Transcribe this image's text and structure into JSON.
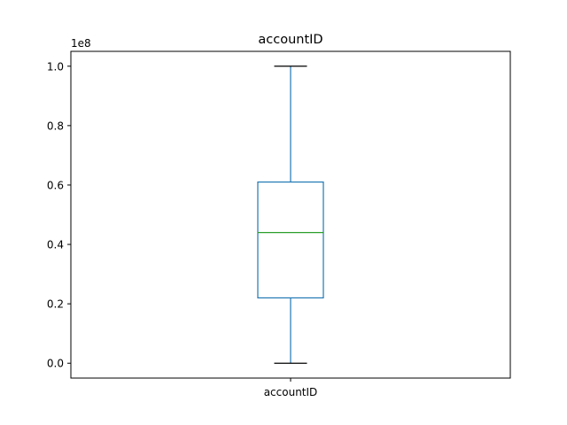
{
  "chart_data": {
    "type": "box",
    "title": "accountID",
    "offset_label": "1e8",
    "categories": [
      "accountID"
    ],
    "ylim": [
      -0.05,
      1.05
    ],
    "yticks": [
      0.0,
      0.2,
      0.4,
      0.6,
      0.8,
      1.0
    ],
    "ytick_labels": [
      "0.0",
      "0.2",
      "0.4",
      "0.6",
      "0.8",
      "1.0"
    ],
    "boxes": [
      {
        "category": "accountID",
        "whisker_low": 0.0,
        "q1": 0.22,
        "median": 0.44,
        "q3": 0.61,
        "whisker_high": 1.0
      }
    ],
    "grid": false,
    "colors": {
      "box": "#1f77b4",
      "median": "#2ca02c",
      "caps": "#000000"
    }
  }
}
